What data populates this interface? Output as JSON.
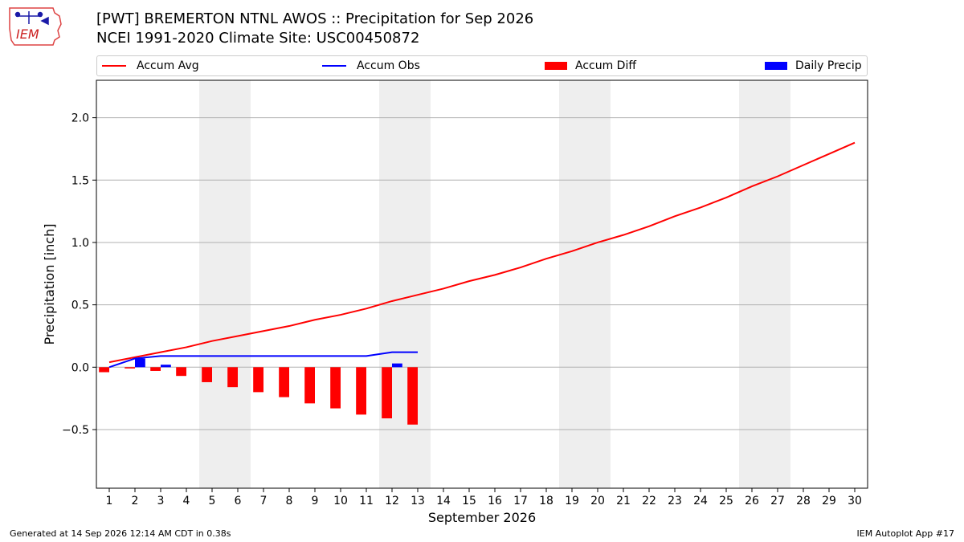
{
  "header": {
    "title_line1": "[PWT] BREMERTON NTNL AWOS :: Precipitation for Sep 2026",
    "title_line2": "NCEI 1991-2020 Climate Site: USC00450872",
    "logo_text": "IEM"
  },
  "footer": {
    "left": "Generated at 14 Sep 2026 12:14 AM CDT in 0.38s",
    "right": "IEM Autoplot App #17"
  },
  "colors": {
    "accum_avg": "#ff0000",
    "accum_obs": "#0000ff",
    "accum_diff": "#ff0000",
    "daily_precip": "#0000ff",
    "weekend_shade": "#eeeeee",
    "grid": "#b0b0b0"
  },
  "chart_data": {
    "type": "line",
    "xlabel": "September 2026",
    "ylabel": "Precipitation [inch]",
    "xlim": [
      0.5,
      30.5
    ],
    "ylim": [
      -0.97,
      2.3
    ],
    "yticks": [
      -0.5,
      0.0,
      0.5,
      1.0,
      1.5,
      2.0
    ],
    "ytick_labels": [
      "−0.5",
      "0.0",
      "0.5",
      "1.0",
      "1.5",
      "2.0"
    ],
    "x": [
      1,
      2,
      3,
      4,
      5,
      6,
      7,
      8,
      9,
      10,
      11,
      12,
      13,
      14,
      15,
      16,
      17,
      18,
      19,
      20,
      21,
      22,
      23,
      24,
      25,
      26,
      27,
      28,
      29,
      30
    ],
    "grid": "horizontal",
    "legend_placement": "top",
    "legend": [
      "Accum Avg",
      "Accum Obs",
      "Accum Diff",
      "Daily Precip"
    ],
    "weekend_shading": [
      [
        4.5,
        6.5
      ],
      [
        11.5,
        13.5
      ],
      [
        18.5,
        20.5
      ],
      [
        25.5,
        27.5
      ]
    ],
    "series": [
      {
        "name": "Accum Avg",
        "kind": "line",
        "x": [
          1,
          2,
          3,
          4,
          5,
          6,
          7,
          8,
          9,
          10,
          11,
          12,
          13,
          14,
          15,
          16,
          17,
          18,
          19,
          20,
          21,
          22,
          23,
          24,
          25,
          26,
          27,
          28,
          29,
          30
        ],
        "values": [
          0.04,
          0.08,
          0.12,
          0.16,
          0.21,
          0.25,
          0.29,
          0.33,
          0.38,
          0.42,
          0.47,
          0.53,
          0.58,
          0.63,
          0.69,
          0.74,
          0.8,
          0.87,
          0.93,
          1.0,
          1.06,
          1.13,
          1.21,
          1.28,
          1.36,
          1.45,
          1.53,
          1.62,
          1.71,
          1.8
        ]
      },
      {
        "name": "Accum Obs",
        "kind": "line",
        "x": [
          1,
          2,
          3,
          4,
          5,
          6,
          7,
          8,
          9,
          10,
          11,
          12,
          13
        ],
        "values": [
          0.0,
          0.07,
          0.09,
          0.09,
          0.09,
          0.09,
          0.09,
          0.09,
          0.09,
          0.09,
          0.09,
          0.12,
          0.12
        ]
      },
      {
        "name": "Accum Diff",
        "kind": "bar",
        "offset": -0.2,
        "x": [
          1,
          2,
          3,
          4,
          5,
          6,
          7,
          8,
          9,
          10,
          11,
          12,
          13
        ],
        "values": [
          -0.04,
          -0.01,
          -0.03,
          -0.07,
          -0.12,
          -0.16,
          -0.2,
          -0.24,
          -0.29,
          -0.33,
          -0.38,
          -0.41,
          -0.46
        ]
      },
      {
        "name": "Daily Precip",
        "kind": "bar",
        "offset": 0.2,
        "x": [
          1,
          2,
          3,
          4,
          5,
          6,
          7,
          8,
          9,
          10,
          11,
          12,
          13
        ],
        "values": [
          0.0,
          0.07,
          0.02,
          0.0,
          0.0,
          0.0,
          0.0,
          0.0,
          0.0,
          0.0,
          0.0,
          0.03,
          0.0
        ]
      }
    ]
  }
}
